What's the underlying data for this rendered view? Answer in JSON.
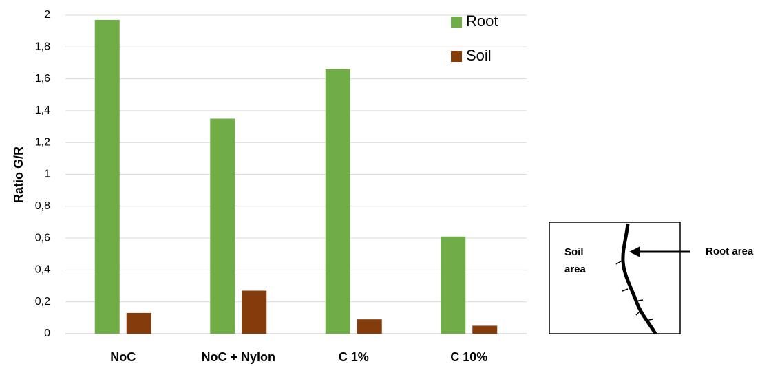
{
  "chart_data": {
    "type": "bar",
    "y_label": "Ratio G/R",
    "categories": [
      "NoC",
      "NoC + Nylon",
      "C 1%",
      "C 10%"
    ],
    "series": [
      {
        "name": "Root",
        "color": "#70ad47",
        "values": [
          1.97,
          1.35,
          1.66,
          0.61
        ]
      },
      {
        "name": "Soil",
        "color": "#843c0c",
        "values": [
          0.13,
          0.27,
          0.09,
          0.05
        ]
      }
    ],
    "ylim": [
      0,
      2
    ],
    "yticks": [
      0,
      {
        "value": 0.2,
        "label": "0,2"
      },
      {
        "value": 0.4,
        "label": "0,4"
      },
      {
        "value": 0.6,
        "label": "0,6"
      },
      {
        "value": 0.8,
        "label": "0,8"
      },
      1,
      {
        "value": 1.2,
        "label": "1,2"
      },
      {
        "value": 1.4,
        "label": "1,4"
      },
      {
        "value": 1.6,
        "label": "1,6"
      },
      {
        "value": 1.8,
        "label": "1,8"
      },
      2
    ],
    "grid": true,
    "legend": "upper right"
  },
  "diagram": {
    "soil_label": [
      "Soil",
      "area"
    ],
    "root_label": "Root area"
  }
}
